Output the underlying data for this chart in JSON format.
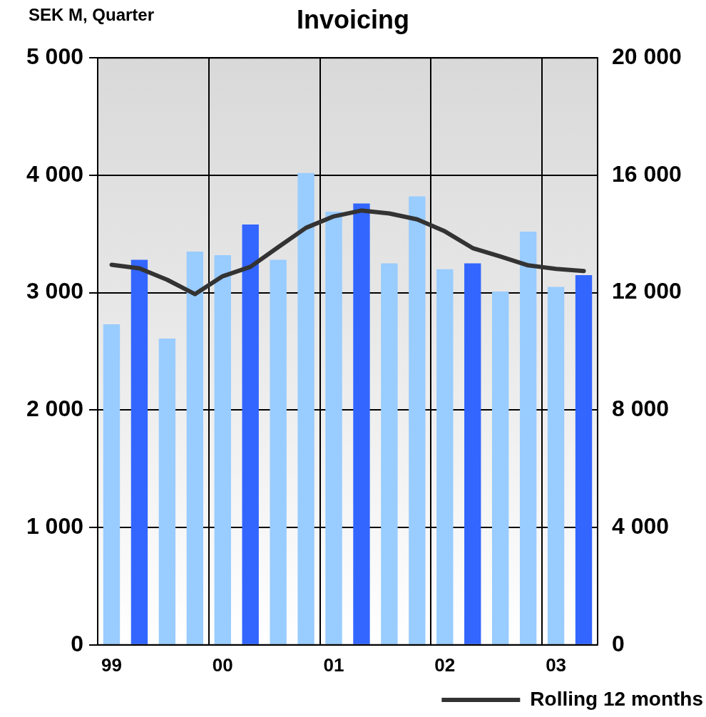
{
  "chart_data": {
    "type": "bar",
    "title": "Invoicing",
    "ylabel": "SEK M, Quarter",
    "categories": [
      "99",
      null,
      null,
      null,
      "00",
      null,
      null,
      null,
      "01",
      null,
      null,
      null,
      "02",
      null,
      null,
      null,
      "03",
      null
    ],
    "series": [
      {
        "colors": [
          "#99ccff",
          "#3366ff",
          "#99ccff",
          "#99ccff",
          "#99ccff",
          "#3366ff",
          "#99ccff",
          "#99ccff",
          "#99ccff",
          "#3366ff",
          "#99ccff",
          "#99ccff",
          "#99ccff",
          "#3366ff",
          "#99ccff",
          "#99ccff",
          "#99ccff",
          "#3366ff"
        ],
        "values": [
          2730,
          3280,
          2610,
          3350,
          3320,
          3580,
          3280,
          4020,
          3690,
          3760,
          3250,
          3820,
          3200,
          3250,
          3010,
          3520,
          3050,
          3150
        ]
      },
      {
        "type": "line",
        "name": "Rolling 12 months",
        "color": "#333333",
        "axis": "y2",
        "values": [
          12950,
          12830,
          12440,
          11950,
          12560,
          12880,
          13550,
          14210,
          14600,
          14800,
          14700,
          14500,
          14090,
          13520,
          13230,
          12930,
          12810,
          12740
        ]
      }
    ],
    "ylim": [
      0,
      5000
    ],
    "yticks": [
      {
        "value": 0,
        "label": "0"
      },
      {
        "value": 1000,
        "label": "1 000"
      },
      {
        "value": 2000,
        "label": "2 000"
      },
      {
        "value": 3000,
        "label": "3 000"
      },
      {
        "value": 4000,
        "label": "4 000"
      },
      {
        "value": 5000,
        "label": "5 000"
      }
    ],
    "y2lim": [
      0,
      20000
    ],
    "y2ticks": [
      {
        "value": 0,
        "label": "0"
      },
      {
        "value": 4000,
        "label": "4 000"
      },
      {
        "value": 8000,
        "label": "8 000"
      },
      {
        "value": 12000,
        "label": "12 000"
      },
      {
        "value": 16000,
        "label": "16 000"
      },
      {
        "value": 20000,
        "label": "20 000"
      }
    ],
    "grid": true,
    "legend": "bottom right"
  }
}
